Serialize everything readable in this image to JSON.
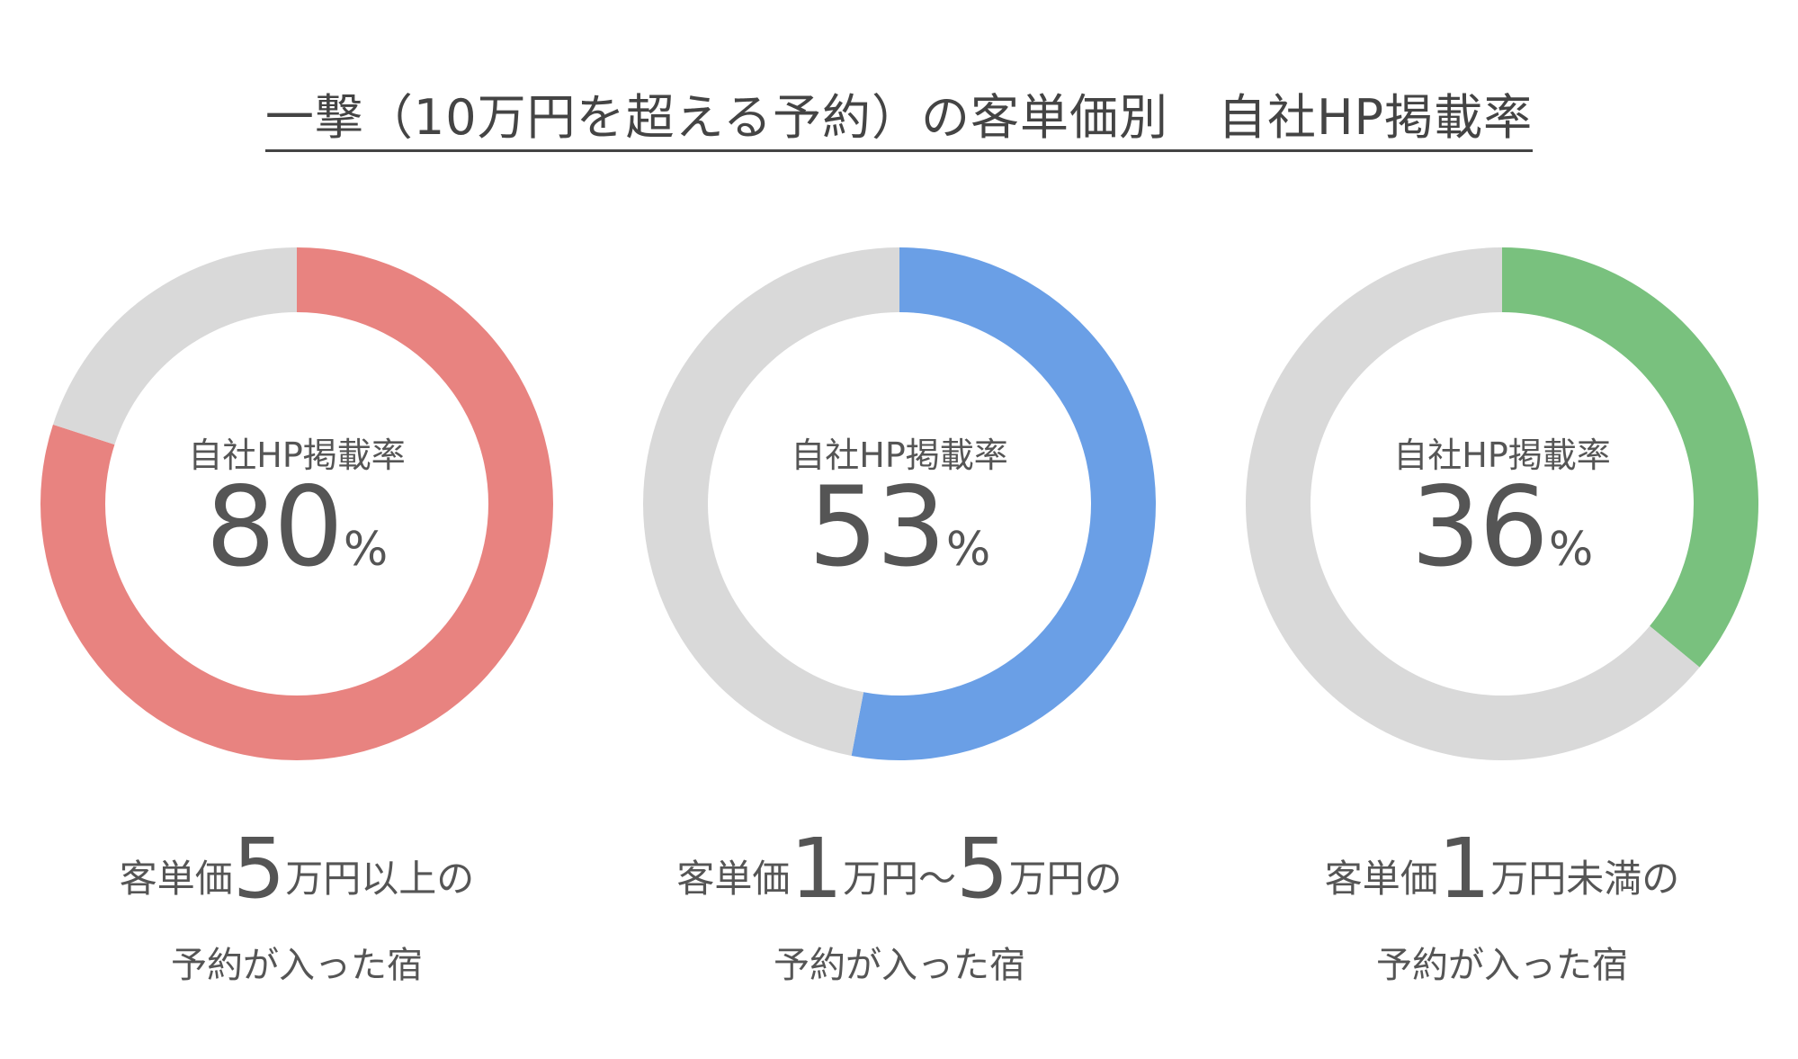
{
  "title": "一撃（10万円を超える予約）の客単価別　自社HP掲載率",
  "chart_data": [
    {
      "type": "pie",
      "variant": "donut",
      "center_label": "自社HP掲載率",
      "value": 80,
      "unit": "%",
      "slices": [
        {
          "label": "自社HP掲載",
          "value": 80,
          "color": "#E88380"
        },
        {
          "label": "",
          "value": 20,
          "color": "#D9D9D9"
        }
      ],
      "caption": {
        "part1": "客単価",
        "big1": "5",
        "part2": "万円以上の",
        "big2": "",
        "part3": "",
        "line2": "予約が入った宿"
      }
    },
    {
      "type": "pie",
      "variant": "donut",
      "center_label": "自社HP掲載率",
      "value": 53,
      "unit": "%",
      "slices": [
        {
          "label": "自社HP掲載",
          "value": 53,
          "color": "#6A9FE6"
        },
        {
          "label": "",
          "value": 47,
          "color": "#D9D9D9"
        }
      ],
      "caption": {
        "part1": "客単価",
        "big1": "1",
        "part2": "万円〜",
        "big2": "5",
        "part3": "万円の",
        "line2": "予約が入った宿"
      }
    },
    {
      "type": "pie",
      "variant": "donut",
      "center_label": "自社HP掲載率",
      "value": 36,
      "unit": "%",
      "slices": [
        {
          "label": "自社HP掲載",
          "value": 36,
          "color": "#79C17E"
        },
        {
          "label": "",
          "value": 64,
          "color": "#D9D9D9"
        }
      ],
      "caption": {
        "part1": "客単価",
        "big1": "1",
        "part2": "万円未満の",
        "big2": "",
        "part3": "",
        "line2": "予約が入った宿"
      }
    }
  ]
}
